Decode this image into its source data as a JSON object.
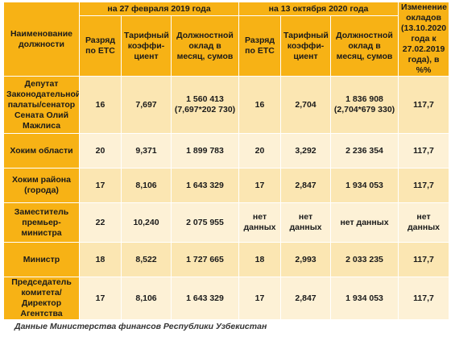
{
  "table": {
    "headers": {
      "position": "Наименование должности",
      "period_2019": "на 27 февраля 2019 года",
      "period_2020": "на 13 октября 2020 года",
      "change": "Изменение окладов (13.10.2020 года к 27.02.2019 года), в %%",
      "grade": "Разряд по ЕТС",
      "coefficient": "Тарифный коэффи-циент",
      "salary": "Должностной оклад в месяц, сумов"
    },
    "rows": [
      {
        "name": "Депутат Законодательной палаты/сенатор Сената Олий Мажлиса",
        "g1": "16",
        "c1": "7,697",
        "s1": "1 560 413",
        "s1_note": "(7,697*202 730)",
        "g2": "16",
        "c2": "2,704",
        "s2": "1 836 908",
        "s2_note": "(2,704*679 330)",
        "pct": "117,7"
      },
      {
        "name": "Хоким области",
        "g1": "20",
        "c1": "9,371",
        "s1": "1 899 783",
        "s1_note": "",
        "g2": "20",
        "c2": "3,292",
        "s2": "2 236 354",
        "s2_note": "",
        "pct": "117,7"
      },
      {
        "name": "Хоким района (города)",
        "g1": "17",
        "c1": "8,106",
        "s1": "1 643 329",
        "s1_note": "",
        "g2": "17",
        "c2": "2,847",
        "s2": "1 934 053",
        "s2_note": "",
        "pct": "117,7"
      },
      {
        "name": "Заместитель премьер-министра",
        "g1": "22",
        "c1": "10,240",
        "s1": "2 075 955",
        "s1_note": "",
        "g2": "нет данных",
        "c2": "нет данных",
        "s2": "нет данных",
        "s2_note": "",
        "pct": "нет данных"
      },
      {
        "name": "Министр",
        "g1": "18",
        "c1": "8,522",
        "s1": "1 727 665",
        "s1_note": "",
        "g2": "18",
        "c2": "2,993",
        "s2": "2 033 235",
        "s2_note": "",
        "pct": "117,7"
      },
      {
        "name": "Председатель комитета/Директор Агентства",
        "g1": "17",
        "c1": "8,106",
        "s1": "1 643 329",
        "s1_note": "",
        "g2": "17",
        "c2": "2,847",
        "s2": "1 934 053",
        "s2_note": "",
        "pct": "117,7"
      }
    ]
  },
  "caption": "Данные Министерства финансов Республики Узбекистан",
  "colors": {
    "header": "#f7b215",
    "cell": "#fbe6b2",
    "cell_alt": "#fdf1d6"
  }
}
